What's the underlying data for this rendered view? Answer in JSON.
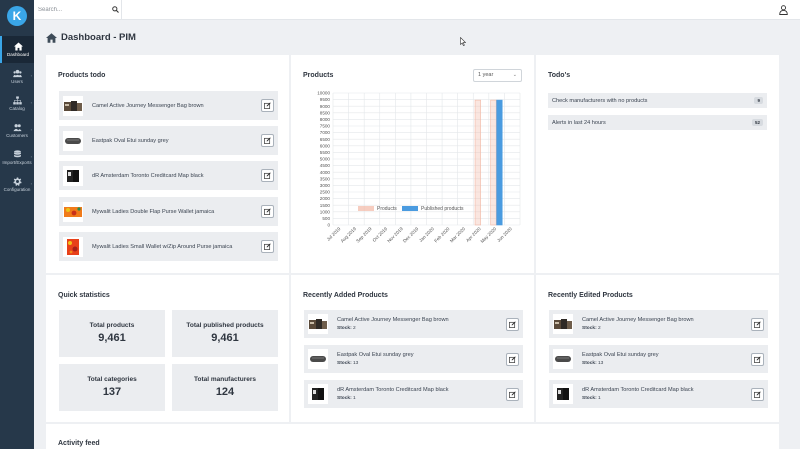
{
  "sidebar": {
    "logo": "K",
    "items": [
      {
        "label": "Dashboard",
        "icon": "home-icon",
        "active": true
      },
      {
        "label": "Users",
        "icon": "users-icon"
      },
      {
        "label": "Catalog",
        "icon": "sitemap-icon"
      },
      {
        "label": "Customers",
        "icon": "customers-icon"
      },
      {
        "label": "Import/Exports",
        "icon": "database-icon"
      },
      {
        "label": "Configuration",
        "icon": "gear-icon"
      }
    ]
  },
  "topbar": {
    "search_placeholder": "Search..."
  },
  "page": {
    "title": "Dashboard - PIM"
  },
  "products_todo": {
    "title": "Products todo",
    "items": [
      {
        "name": "Camel Active Journey Messenger Bag brown",
        "thumb": "bag"
      },
      {
        "name": "Eastpak Oval Etui sunday grey",
        "thumb": "pouch"
      },
      {
        "name": "dR Amsterdam Toronto Creditcard Map black",
        "thumb": "wallet"
      },
      {
        "name": "Mywalit Ladies Double Flap Purse Wallet jamaica",
        "thumb": "colorful"
      },
      {
        "name": "Mywalit Ladies Small Wallet w/Zip Around Purse jamaica",
        "thumb": "colorful-red"
      }
    ]
  },
  "products_chart": {
    "title": "Products",
    "range": "1 year"
  },
  "chart_data": {
    "type": "bar",
    "categories": [
      "Jul 2019",
      "Aug 2019",
      "Sep 2019",
      "Oct 2019",
      "Nov 2019",
      "Dec 2019",
      "Jan 2020",
      "Feb 2020",
      "Mar 2020",
      "Apr 2020",
      "May 2020",
      "Jun 2020"
    ],
    "series": [
      {
        "name": "Products",
        "color": "#f2b8a5",
        "values": [
          0,
          0,
          0,
          0,
          0,
          0,
          0,
          0,
          0,
          9461,
          9461,
          0
        ]
      },
      {
        "name": "Published products",
        "color": "#4a9be0",
        "values": [
          0,
          0,
          0,
          0,
          0,
          0,
          0,
          0,
          0,
          0,
          9461,
          0
        ]
      }
    ],
    "yticks": [
      0,
      500,
      1000,
      1500,
      2000,
      2500,
      3000,
      3500,
      4000,
      4500,
      5000,
      5500,
      6000,
      6500,
      7000,
      7500,
      8000,
      8500,
      9000,
      9500,
      10000
    ],
    "ylim": [
      0,
      10000
    ],
    "legend": "bottom",
    "grid": true
  },
  "todos": {
    "title": "Todo's",
    "items": [
      {
        "label": "Check manufacturers with no products",
        "count": "9"
      },
      {
        "label": "Alerts in last 24 hours",
        "count": "52"
      }
    ]
  },
  "quick_stats": {
    "title": "Quick statistics",
    "items": [
      {
        "label": "Total products",
        "value": "9,461"
      },
      {
        "label": "Total published products",
        "value": "9,461"
      },
      {
        "label": "Total categories",
        "value": "137"
      },
      {
        "label": "Total manufacturers",
        "value": "124"
      }
    ]
  },
  "recently_added": {
    "title": "Recently Added Products",
    "stock_label": "Stock:",
    "items": [
      {
        "name": "Camel Active Journey Messenger Bag brown",
        "stock": "2",
        "thumb": "bag"
      },
      {
        "name": "Eastpak Oval Etui sunday grey",
        "stock": "13",
        "thumb": "pouch"
      },
      {
        "name": "dR Amsterdam Toronto Creditcard Map black",
        "stock": "1",
        "thumb": "wallet"
      }
    ]
  },
  "recently_edited": {
    "title": "Recently Edited Products",
    "stock_label": "Stock:",
    "items": [
      {
        "name": "Camel Active Journey Messenger Bag brown",
        "stock": "2",
        "thumb": "bag"
      },
      {
        "name": "Eastpak Oval Etui sunday grey",
        "stock": "13",
        "thumb": "pouch"
      },
      {
        "name": "dR Amsterdam Toronto Creditcard Map black",
        "stock": "1",
        "thumb": "wallet"
      }
    ]
  },
  "activity": {
    "title": "Activity feed"
  }
}
